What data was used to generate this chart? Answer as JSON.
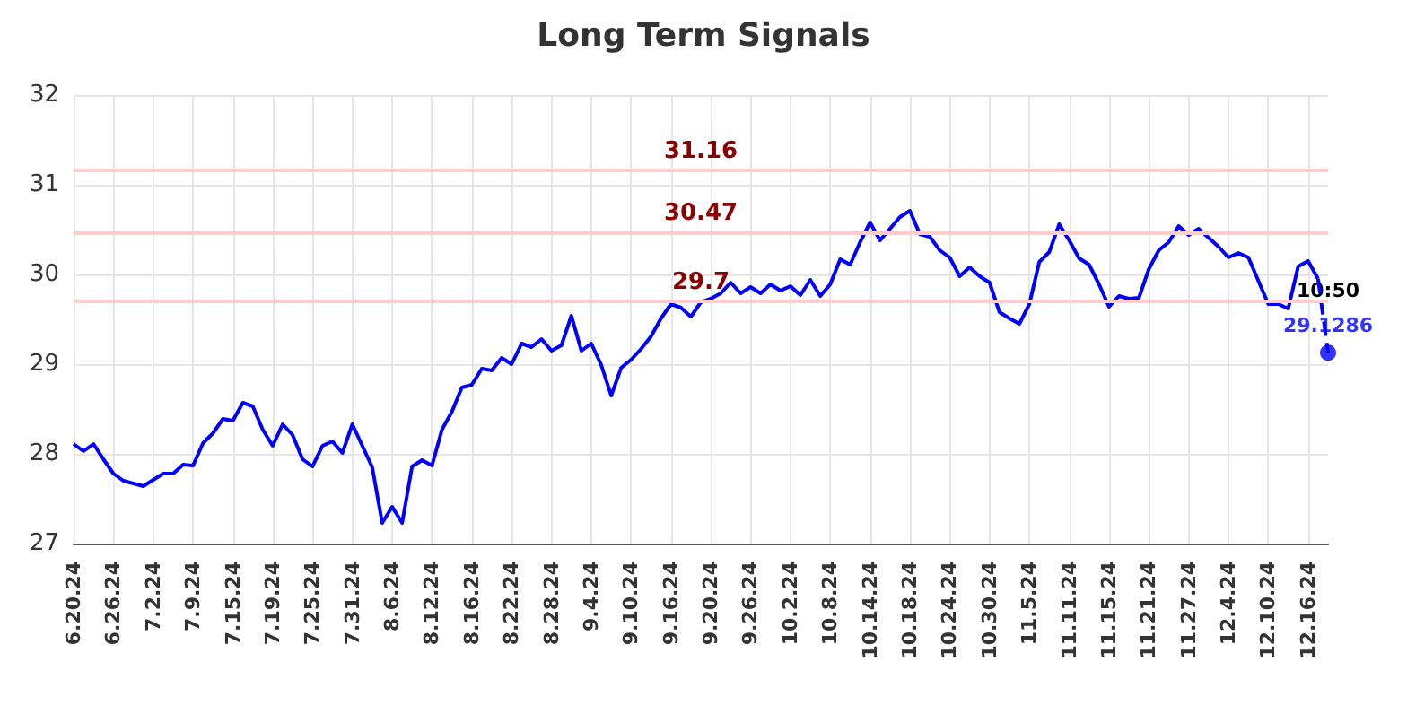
{
  "chart_data": {
    "type": "line",
    "title": "Long Term Signals",
    "categories": [
      "6.20.24",
      null,
      null,
      null,
      "6.26.24",
      null,
      null,
      null,
      "7.2.24",
      null,
      null,
      null,
      "7.9.24",
      null,
      null,
      null,
      "7.15.24",
      null,
      null,
      null,
      "7.19.24",
      null,
      null,
      null,
      "7.25.24",
      null,
      null,
      null,
      "7.31.24",
      null,
      null,
      null,
      "8.6.24",
      null,
      null,
      null,
      "8.12.24",
      null,
      null,
      null,
      "8.16.24",
      null,
      null,
      null,
      "8.22.24",
      null,
      null,
      null,
      "8.28.24",
      null,
      null,
      null,
      "9.4.24",
      null,
      null,
      null,
      "9.10.24",
      null,
      null,
      null,
      "9.16.24",
      null,
      null,
      null,
      "9.20.24",
      null,
      null,
      null,
      "9.26.24",
      null,
      null,
      null,
      "10.2.24",
      null,
      null,
      null,
      "10.8.24",
      null,
      null,
      null,
      "10.14.24",
      null,
      null,
      null,
      "10.18.24",
      null,
      null,
      null,
      "10.24.24",
      null,
      null,
      null,
      "10.30.24",
      null,
      null,
      null,
      "11.5.24",
      null,
      null,
      null,
      "11.11.24",
      null,
      null,
      null,
      "11.15.24",
      null,
      null,
      null,
      "11.21.24",
      null,
      null,
      null,
      "11.27.24",
      null,
      null,
      null,
      "12.4.24",
      null,
      null,
      null,
      "12.10.24",
      null,
      null,
      null,
      "12.16.24",
      null,
      null
    ],
    "series": [
      {
        "color": "#0000ff",
        "values": [
          28.11,
          28.03,
          28.11,
          27.94,
          27.78,
          27.7,
          27.67,
          27.64,
          27.71,
          27.78,
          27.78,
          27.88,
          27.87,
          28.12,
          28.23,
          28.39,
          28.37,
          28.57,
          28.53,
          28.27,
          28.09,
          28.33,
          28.21,
          27.94,
          27.86,
          28.09,
          28.14,
          28.01,
          28.33,
          28.09,
          27.85,
          27.23,
          27.41,
          27.23,
          27.86,
          27.93,
          27.87,
          28.27,
          28.47,
          28.74,
          28.77,
          28.95,
          28.93,
          29.07,
          29.0,
          29.23,
          29.19,
          29.28,
          29.15,
          29.21,
          29.54,
          29.15,
          29.23,
          28.99,
          28.65,
          28.96,
          29.05,
          29.17,
          29.31,
          29.51,
          29.67,
          29.63,
          29.53,
          29.69,
          29.73,
          29.79,
          29.91,
          29.79,
          29.86,
          29.79,
          29.89,
          29.82,
          29.87,
          29.77,
          29.94,
          29.76,
          29.89,
          30.17,
          30.11,
          30.36,
          30.58,
          30.38,
          30.51,
          30.64,
          30.71,
          30.45,
          30.42,
          30.27,
          30.19,
          29.98,
          30.08,
          29.98,
          29.91,
          29.58,
          29.51,
          29.45,
          29.67,
          30.14,
          30.25,
          30.56,
          30.38,
          30.18,
          30.11,
          29.89,
          29.64,
          29.76,
          29.73,
          29.74,
          30.06,
          30.27,
          30.36,
          30.54,
          30.44,
          30.51,
          30.41,
          30.31,
          30.19,
          30.24,
          30.19,
          29.93,
          29.67,
          29.67,
          29.62,
          30.09,
          30.15,
          29.95,
          null
        ]
      },
      {
        "color": "#0000ff",
        "line_style": "dashed",
        "values": [
          null,
          null,
          null,
          null,
          null,
          null,
          null,
          null,
          null,
          null,
          null,
          null,
          null,
          null,
          null,
          null,
          null,
          null,
          null,
          null,
          null,
          null,
          null,
          null,
          null,
          null,
          null,
          null,
          null,
          null,
          null,
          null,
          null,
          null,
          null,
          null,
          null,
          null,
          null,
          null,
          null,
          null,
          null,
          null,
          null,
          null,
          null,
          null,
          null,
          null,
          null,
          null,
          null,
          null,
          null,
          null,
          null,
          null,
          null,
          null,
          null,
          null,
          null,
          null,
          null,
          null,
          null,
          null,
          null,
          null,
          null,
          null,
          null,
          null,
          null,
          null,
          null,
          null,
          null,
          null,
          null,
          null,
          null,
          null,
          null,
          null,
          null,
          null,
          null,
          null,
          null,
          null,
          null,
          null,
          null,
          null,
          null,
          null,
          null,
          null,
          null,
          null,
          null,
          null,
          null,
          null,
          null,
          null,
          null,
          null,
          null,
          null,
          null,
          null,
          null,
          null,
          null,
          null,
          null,
          null,
          null,
          null,
          null,
          null,
          null,
          29.95,
          29.1286
        ]
      },
      {
        "type": "scatter",
        "color": "#0000ff",
        "marker": "circle",
        "values": [
          null,
          null,
          null,
          null,
          null,
          null,
          null,
          null,
          null,
          null,
          null,
          null,
          null,
          null,
          null,
          null,
          null,
          null,
          null,
          null,
          null,
          null,
          null,
          null,
          null,
          null,
          null,
          null,
          null,
          null,
          null,
          null,
          null,
          null,
          null,
          null,
          null,
          null,
          null,
          null,
          null,
          null,
          null,
          null,
          null,
          null,
          null,
          null,
          null,
          null,
          null,
          null,
          null,
          null,
          null,
          null,
          null,
          null,
          null,
          null,
          null,
          null,
          null,
          null,
          null,
          null,
          null,
          null,
          null,
          null,
          null,
          null,
          null,
          null,
          null,
          null,
          null,
          null,
          null,
          null,
          null,
          null,
          null,
          null,
          null,
          null,
          null,
          null,
          null,
          null,
          null,
          null,
          null,
          null,
          null,
          null,
          null,
          null,
          null,
          null,
          null,
          null,
          null,
          null,
          null,
          null,
          null,
          null,
          null,
          null,
          null,
          null,
          null,
          null,
          null,
          null,
          null,
          null,
          null,
          null,
          null,
          null,
          null,
          null,
          null,
          null,
          29.1286
        ],
        "value_labels": [
          null,
          null,
          null,
          null,
          null,
          null,
          null,
          null,
          null,
          null,
          null,
          null,
          null,
          null,
          null,
          null,
          null,
          null,
          null,
          null,
          null,
          null,
          null,
          null,
          null,
          null,
          null,
          null,
          null,
          null,
          null,
          null,
          null,
          null,
          null,
          null,
          null,
          null,
          null,
          null,
          null,
          null,
          null,
          null,
          null,
          null,
          null,
          null,
          null,
          null,
          null,
          null,
          null,
          null,
          null,
          null,
          null,
          null,
          null,
          null,
          null,
          null,
          null,
          null,
          null,
          null,
          null,
          null,
          null,
          null,
          null,
          null,
          null,
          null,
          null,
          null,
          null,
          null,
          null,
          null,
          null,
          null,
          null,
          null,
          null,
          null,
          null,
          null,
          null,
          null,
          null,
          null,
          null,
          null,
          null,
          null,
          null,
          null,
          null,
          null,
          null,
          null,
          null,
          null,
          null,
          null,
          null,
          null,
          null,
          null,
          null,
          null,
          null,
          null,
          null,
          null,
          null,
          null,
          null,
          null,
          null,
          null,
          null,
          null,
          null,
          null,
          "29.1286"
        ]
      }
    ],
    "ylim": [
      27,
      32
    ],
    "yticks": [
      27,
      28,
      29,
      30,
      31,
      32
    ],
    "grid": true,
    "marker": "none",
    "line_style": "solid",
    "ref_lines": [
      {
        "axis": "y",
        "value": 31.16,
        "label": "31.16",
        "color": "#ffcccc"
      },
      {
        "axis": "y",
        "value": 30.47,
        "label": "30.47",
        "color": "#ffcccc"
      },
      {
        "axis": "y",
        "value": 29.7,
        "label": "29.7",
        "color": "#ffcccc"
      }
    ],
    "annotations": [
      {
        "text": "10:50",
        "y": 29.1286
      }
    ]
  }
}
